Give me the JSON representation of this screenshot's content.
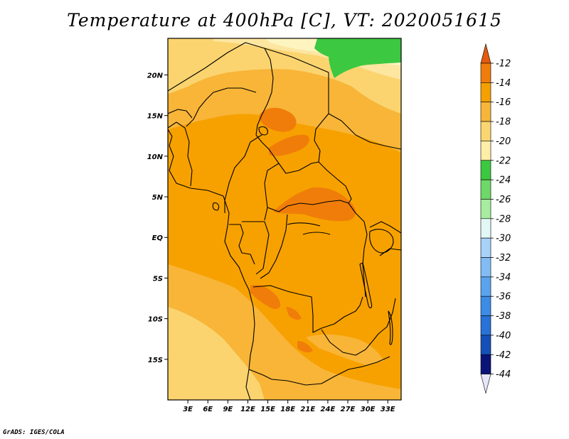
{
  "title": "Temperature at 400hPa [C], VT: 2020051615",
  "credit": "GrADS: IGES/COLA",
  "map": {
    "region": "Central Africa",
    "variable": "Temperature",
    "level": "400hPa",
    "units": "C",
    "valid_time": "2020051615",
    "lon_range": [
      0,
      35
    ],
    "lat_range": [
      -20,
      24.5
    ],
    "x_ticks": [
      "3E",
      "6E",
      "9E",
      "12E",
      "15E",
      "18E",
      "21E",
      "24E",
      "27E",
      "30E",
      "33E"
    ],
    "y_ticks": [
      "20N",
      "15N",
      "10N",
      "5N",
      "EQ",
      "5S",
      "10S",
      "15S"
    ]
  },
  "colorbar": {
    "labels": [
      "-12",
      "-14",
      "-16",
      "-18",
      "-20",
      "-22",
      "-24",
      "-26",
      "-28",
      "-30",
      "-32",
      "-34",
      "-36",
      "-38",
      "-40",
      "-42",
      "-44"
    ],
    "colors": [
      "#e65a0f",
      "#f07d0a",
      "#f5a000",
      "#f7b53a",
      "#fbd670",
      "#fdeea8",
      "#3cc840",
      "#6ed868",
      "#a8eca0",
      "#e1f8f5",
      "#a8d2f8",
      "#82bcf4",
      "#5aa4ee",
      "#3c8ce6",
      "#2872d8",
      "#1450b8",
      "#0a1478",
      "#e6e6fa"
    ]
  },
  "palette": {
    "level_m14": "#f7a100",
    "level_m16": "#f8b538",
    "level_m18": "#fbd46f",
    "level_m20": "#fde6a0",
    "level_m22": "#fdf4c0",
    "level_m24": "#3cc840",
    "level_m12": "#f07d0a",
    "coast": "#000000"
  }
}
